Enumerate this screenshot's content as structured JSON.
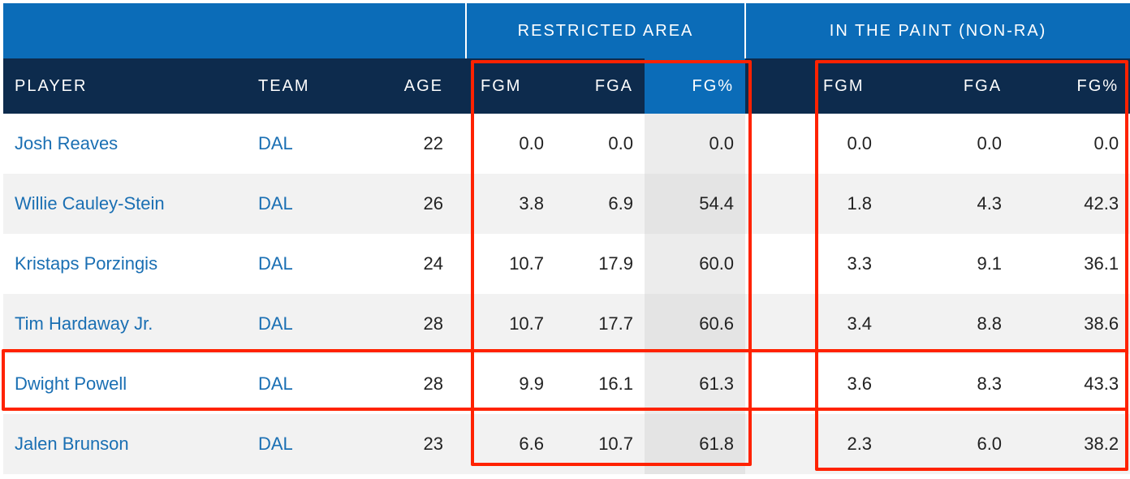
{
  "group_headers": {
    "restricted_area": "RESTRICTED AREA",
    "in_the_paint": "IN THE PAINT (NON-RA)"
  },
  "columns": {
    "player": "PLAYER",
    "team": "TEAM",
    "age": "AGE",
    "ra_fgm": "FGM",
    "ra_fga": "FGA",
    "ra_fgp": "FG%",
    "paint_fgm": "FGM",
    "paint_fga": "FGA",
    "paint_fgp": "FG%"
  },
  "rows": [
    {
      "player": "Josh Reaves",
      "team": "DAL",
      "age": "22",
      "ra_fgm": "0.0",
      "ra_fga": "0.0",
      "ra_fgp": "0.0",
      "paint_fgm": "0.0",
      "paint_fga": "0.0",
      "paint_fgp": "0.0"
    },
    {
      "player": "Willie Cauley-Stein",
      "team": "DAL",
      "age": "26",
      "ra_fgm": "3.8",
      "ra_fga": "6.9",
      "ra_fgp": "54.4",
      "paint_fgm": "1.8",
      "paint_fga": "4.3",
      "paint_fgp": "42.3"
    },
    {
      "player": "Kristaps Porzingis",
      "team": "DAL",
      "age": "24",
      "ra_fgm": "10.7",
      "ra_fga": "17.9",
      "ra_fgp": "60.0",
      "paint_fgm": "3.3",
      "paint_fga": "9.1",
      "paint_fgp": "36.1"
    },
    {
      "player": "Tim Hardaway Jr.",
      "team": "DAL",
      "age": "28",
      "ra_fgm": "10.7",
      "ra_fga": "17.7",
      "ra_fgp": "60.6",
      "paint_fgm": "3.4",
      "paint_fga": "8.8",
      "paint_fgp": "38.6"
    },
    {
      "player": "Dwight Powell",
      "team": "DAL",
      "age": "28",
      "ra_fgm": "9.9",
      "ra_fga": "16.1",
      "ra_fgp": "61.3",
      "paint_fgm": "3.6",
      "paint_fga": "8.3",
      "paint_fgp": "43.3"
    },
    {
      "player": "Jalen Brunson",
      "team": "DAL",
      "age": "23",
      "ra_fgm": "6.6",
      "ra_fga": "10.7",
      "ra_fgp": "61.8",
      "paint_fgm": "2.3",
      "paint_fga": "6.0",
      "paint_fgp": "38.2"
    }
  ],
  "colors": {
    "group_header_bg": "#0b6cb8",
    "column_header_bg": "#0d2b4d",
    "sorted_column_bg": "#0b6cb8",
    "link_color": "#1a6fb3",
    "highlight_box": "#ff2200"
  }
}
